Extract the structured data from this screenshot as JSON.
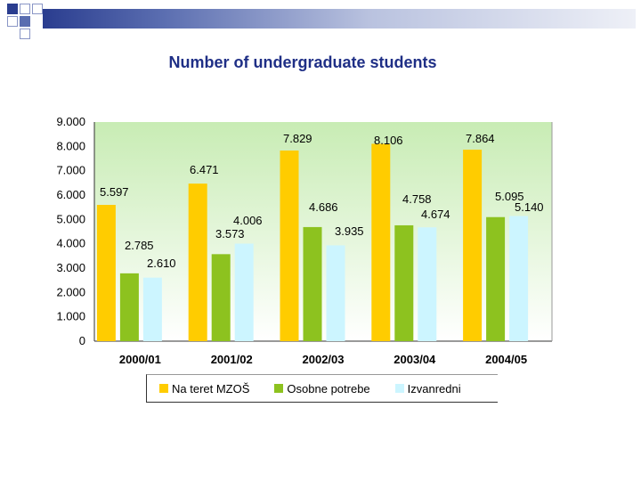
{
  "title": "Number of undergraduate students",
  "colors": {
    "header_dark": "#2a3d8f",
    "title": "#1f2f86",
    "plot_bg": "#d8f0c8"
  },
  "chart_data": {
    "type": "bar",
    "title": "Number of undergraduate students",
    "xlabel": "",
    "ylabel": "",
    "ylim": [
      0,
      9000
    ],
    "yticks": [
      "0",
      "1.000",
      "2.000",
      "3.000",
      "4.000",
      "5.000",
      "6.000",
      "7.000",
      "8.000",
      "9.000"
    ],
    "ytick_values": [
      0,
      1000,
      2000,
      3000,
      4000,
      5000,
      6000,
      7000,
      8000,
      9000
    ],
    "categories": [
      "2000/01",
      "2001/02",
      "2002/03",
      "2003/04",
      "2004/05"
    ],
    "series": [
      {
        "name": "Na teret MZOŠ",
        "color": "#ffcc00",
        "values": [
          5597,
          6471,
          7829,
          8106,
          7864
        ],
        "labels": [
          "5.597",
          "6.471",
          "7.829",
          "8.106",
          "7.864"
        ]
      },
      {
        "name": "Osobne potrebe",
        "color": "#8dc21f",
        "values": [
          2785,
          3573,
          4686,
          4758,
          5095
        ],
        "labels": [
          "2.785",
          "3.573",
          "4.686",
          "4.758",
          "5.095"
        ]
      },
      {
        "name": "Izvanredni",
        "color": "#ccf5ff",
        "values": [
          2610,
          4006,
          3935,
          4674,
          5140
        ],
        "labels": [
          "2.610",
          "4.006",
          "3.935",
          "4.674",
          "5.140"
        ]
      }
    ],
    "grid": false,
    "legend_position": "bottom"
  }
}
